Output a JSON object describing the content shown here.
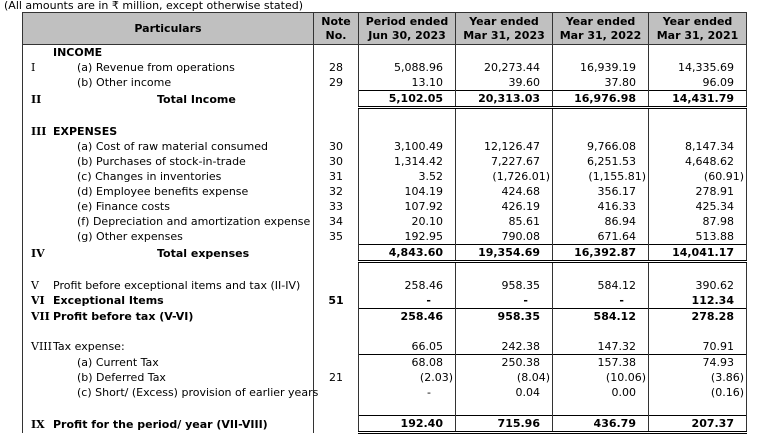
{
  "note": "(All amounts are in ₹ million, except otherwise stated)",
  "headers": {
    "particulars": "Particulars",
    "note": "Note No.",
    "cols": [
      "Period ended Jun 30, 2023",
      "Year ended Mar 31, 2023",
      "Year ended Mar 31, 2022",
      "Year ended Mar 31, 2021"
    ]
  },
  "rows": [
    {
      "roman": "",
      "label": "INCOME",
      "note": "",
      "values": [
        "",
        "",
        "",
        ""
      ],
      "type": "heading"
    },
    {
      "roman": "I",
      "label": "(a)  Revenue from operations",
      "note": "28",
      "values": [
        "5,088.96",
        "20,273.44",
        "16,939.19",
        "14,335.69"
      ],
      "type": "item"
    },
    {
      "roman": "",
      "label": "(b)  Other income",
      "note": "29",
      "values": [
        "13.10",
        "39.60",
        "37.80",
        "96.09"
      ],
      "type": "item"
    },
    {
      "roman": "II",
      "label": "Total Income",
      "note": "",
      "values": [
        "5,102.05",
        "20,313.03",
        "16,976.98",
        "14,431.79"
      ],
      "type": "total"
    },
    {
      "roman": "",
      "label": "",
      "note": "",
      "values": [
        "",
        "",
        "",
        ""
      ],
      "type": "blank"
    },
    {
      "roman": "III",
      "label": "EXPENSES",
      "note": "",
      "values": [
        "",
        "",
        "",
        ""
      ],
      "type": "heading"
    },
    {
      "roman": "",
      "label": "(a)  Cost of raw material consumed",
      "note": "30",
      "values": [
        "3,100.49",
        "12,126.47",
        "9,766.08",
        "8,147.34"
      ],
      "type": "item"
    },
    {
      "roman": "",
      "label": "(b)  Purchases of stock-in-trade",
      "note": "30",
      "values": [
        "1,314.42",
        "7,227.67",
        "6,251.53",
        "4,648.62"
      ],
      "type": "item"
    },
    {
      "roman": "",
      "label": "(c)  Changes in inventories",
      "note": "31",
      "values": [
        "3.52",
        "(1,726.01)",
        "(1,155.81)",
        "(60.91)"
      ],
      "type": "item"
    },
    {
      "roman": "",
      "label": "(d)  Employee benefits expense",
      "note": "32",
      "values": [
        "104.19",
        "424.68",
        "356.17",
        "278.91"
      ],
      "type": "item"
    },
    {
      "roman": "",
      "label": "(e)  Finance costs",
      "note": "33",
      "values": [
        "107.92",
        "426.19",
        "416.33",
        "425.34"
      ],
      "type": "item"
    },
    {
      "roman": "",
      "label": "(f)  Depreciation and amortization expense",
      "note": "34",
      "values": [
        "20.10",
        "85.61",
        "86.94",
        "87.98"
      ],
      "type": "item"
    },
    {
      "roman": "",
      "label": "(g)  Other expenses",
      "note": "35",
      "values": [
        "192.95",
        "790.08",
        "671.64",
        "513.88"
      ],
      "type": "item"
    },
    {
      "roman": "IV",
      "label": "Total expenses",
      "note": "",
      "values": [
        "4,843.60",
        "19,354.69",
        "16,392.87",
        "14,041.17"
      ],
      "type": "total"
    },
    {
      "roman": "",
      "label": "",
      "note": "",
      "values": [
        "",
        "",
        "",
        ""
      ],
      "type": "blank"
    },
    {
      "roman": "V",
      "label": "Profit before exceptional items and tax (II-IV)",
      "note": "",
      "values": [
        "258.46",
        "958.35",
        "584.12",
        "390.62"
      ],
      "type": "plain"
    },
    {
      "roman": "VI",
      "label": "Exceptional Items",
      "note": "51",
      "values": [
        "-",
        "-",
        "-",
        "112.34"
      ],
      "type": "boldplain"
    },
    {
      "roman": "VII",
      "label": "Profit before tax (V-VI)",
      "note": "",
      "values": [
        "258.46",
        "958.35",
        "584.12",
        "278.28"
      ],
      "type": "boldline"
    },
    {
      "roman": "",
      "label": "",
      "note": "",
      "values": [
        "",
        "",
        "",
        ""
      ],
      "type": "blank"
    },
    {
      "roman": "VIII",
      "label": "Tax expense:",
      "note": "",
      "values": [
        "66.05",
        "242.38",
        "147.32",
        "70.91"
      ],
      "type": "plain"
    },
    {
      "roman": "",
      "label": "(a)  Current Tax",
      "note": "",
      "values": [
        "68.08",
        "250.38",
        "157.38",
        "74.93"
      ],
      "type": "itemline"
    },
    {
      "roman": "",
      "label": "(b)  Deferred Tax",
      "note": "21",
      "values": [
        "(2.03)",
        "(8.04)",
        "(10.06)",
        "(3.86)"
      ],
      "type": "item"
    },
    {
      "roman": "",
      "label": "(c)  Short/ (Excess) provision of earlier years",
      "note": "",
      "values": [
        "-",
        "0.04",
        "0.00",
        "(0.16)"
      ],
      "type": "item"
    },
    {
      "roman": "",
      "label": "",
      "note": "",
      "values": [
        "",
        "",
        "",
        ""
      ],
      "type": "blank"
    },
    {
      "roman": "IX",
      "label": "Profit for the period/ year (VII-VIII)",
      "note": "",
      "values": [
        "192.40",
        "715.96",
        "436.79",
        "207.37"
      ],
      "type": "boldtotal"
    }
  ]
}
